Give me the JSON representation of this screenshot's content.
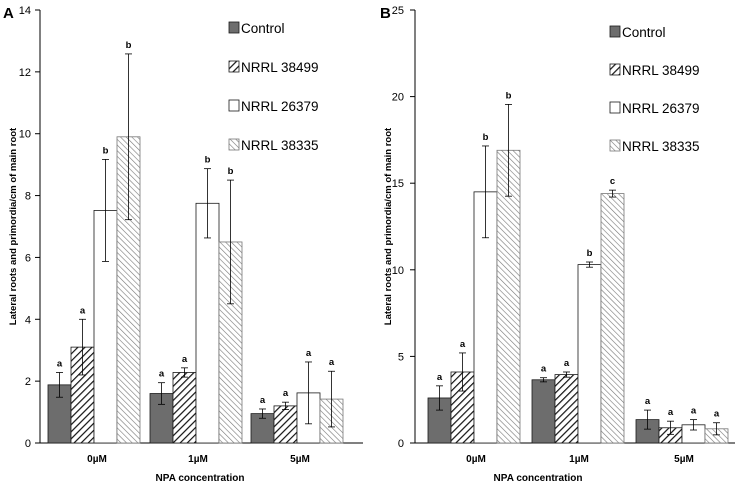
{
  "chart_data": [
    {
      "panel_label": "A",
      "type": "bar",
      "categories": [
        "0µM",
        "1µM",
        "5µM"
      ],
      "xlabel": "NPA concentration",
      "ylabel": "Lateral roots and primordia/cm of main root",
      "ylim": [
        0,
        14
      ],
      "yticks": [
        "0",
        "2",
        "4",
        "6",
        "8",
        "10",
        "12",
        "14"
      ],
      "ytick_values": [
        0,
        2,
        4,
        6,
        8,
        10,
        12,
        14
      ],
      "series": [
        {
          "name": "Control",
          "values": [
            1.88,
            1.6,
            0.95
          ],
          "errors": [
            0.4,
            0.35,
            0.15
          ],
          "labels": [
            "a",
            "a",
            "a"
          ]
        },
        {
          "name": "NRRL 38499",
          "values": [
            3.1,
            2.28,
            1.2
          ],
          "errors": [
            0.9,
            0.15,
            0.12
          ],
          "labels": [
            "a",
            "a",
            "a"
          ]
        },
        {
          "name": "NRRL 26379",
          "values": [
            7.52,
            7.75,
            1.62
          ],
          "errors": [
            1.65,
            1.12,
            1.0
          ],
          "labels": [
            "b",
            "b",
            "a"
          ]
        },
        {
          "name": "NRRL 38335",
          "values": [
            9.9,
            6.5,
            1.42
          ],
          "errors": [
            2.68,
            2.0,
            0.9
          ],
          "labels": [
            "b",
            "b",
            "a"
          ]
        }
      ],
      "legend_position": "top-right"
    },
    {
      "panel_label": "B",
      "type": "bar",
      "categories": [
        "0µM",
        "1µM",
        "5µM"
      ],
      "xlabel": "NPA concentration",
      "ylabel": "Lateral roots and primordia/cm of main root",
      "ylim": [
        0,
        25
      ],
      "yticks": [
        "0",
        "5",
        "10",
        "15",
        "20",
        "25"
      ],
      "ytick_values": [
        0,
        5,
        10,
        15,
        20,
        25
      ],
      "series": [
        {
          "name": "Control",
          "values": [
            2.6,
            3.65,
            1.35
          ],
          "errors": [
            0.7,
            0.12,
            0.55
          ],
          "labels": [
            "a",
            "a",
            "a"
          ]
        },
        {
          "name": "NRRL 38499",
          "values": [
            4.1,
            3.95,
            0.88
          ],
          "errors": [
            1.1,
            0.15,
            0.38
          ],
          "labels": [
            "a",
            "a",
            "a"
          ]
        },
        {
          "name": "NRRL 26379",
          "values": [
            14.5,
            10.3,
            1.05
          ],
          "errors": [
            2.65,
            0.15,
            0.3
          ],
          "labels": [
            "b",
            "b",
            "a"
          ]
        },
        {
          "name": "NRRL 38335",
          "values": [
            16.9,
            14.4,
            0.82
          ],
          "errors": [
            2.65,
            0.2,
            0.35
          ],
          "labels": [
            "b",
            "c",
            "a"
          ]
        }
      ],
      "legend_position": "top-right"
    }
  ],
  "colors": {
    "control_fill": "#6d6d6d",
    "bar_stroke": "#1a1a1a",
    "hatch_stroke": "#111111",
    "light_hatch_stroke": "#777777",
    "white_fill": "#ffffff"
  }
}
